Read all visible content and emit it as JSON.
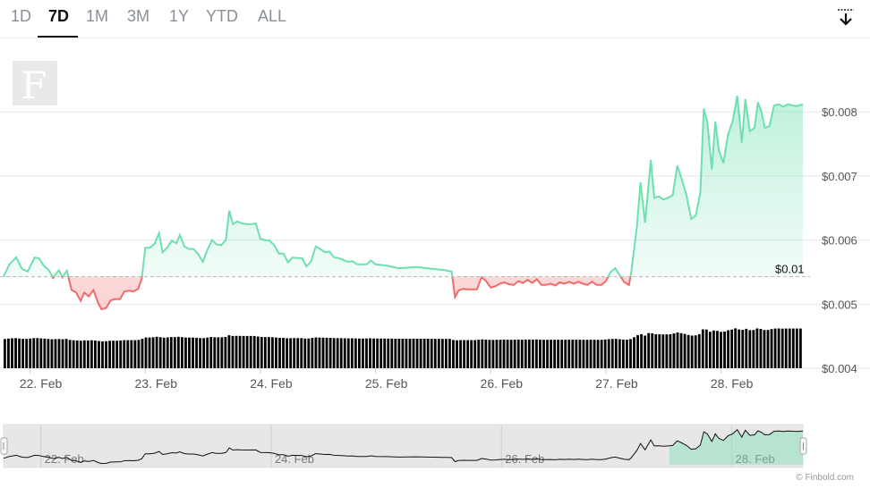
{
  "tabs": {
    "items": [
      "1D",
      "7D",
      "1M",
      "3M",
      "1Y",
      "YTD",
      "ALL"
    ],
    "active": "7D"
  },
  "download_icon": "download-arrow-icon",
  "logo_letter": "F",
  "credit": "© Finbold.com",
  "colors": {
    "up": "#6ee0b0",
    "down": "#ef6b6b",
    "up_fill": "#d4f6e6",
    "down_fill": "#fcdede",
    "volume": "#000000",
    "grid": "#e6e6e6",
    "tab_active": "#111111"
  },
  "chart_data": {
    "type": "line",
    "baseline_label": "$0.01",
    "baseline": 0.00543,
    "ylim": [
      0.004,
      0.0087
    ],
    "y_ticks": [
      {
        "value": 0.008,
        "label": "$0.008"
      },
      {
        "value": 0.007,
        "label": "$0.007"
      },
      {
        "value": 0.006,
        "label": "$0.006"
      },
      {
        "value": 0.005,
        "label": "$0.005"
      },
      {
        "value": 0.004,
        "label": "$0.004"
      }
    ],
    "x_range": [
      21.77,
      28.71
    ],
    "x_ticks": [
      {
        "value": 22,
        "label": "22. Feb"
      },
      {
        "value": 23,
        "label": "23. Feb"
      },
      {
        "value": 24,
        "label": "24. Feb"
      },
      {
        "value": 25,
        "label": "25. Feb"
      },
      {
        "value": 26,
        "label": "26. Feb"
      },
      {
        "value": 27,
        "label": "27. Feb"
      },
      {
        "value": 28,
        "label": "28. Feb"
      }
    ],
    "series": [
      {
        "points": [
          [
            21.77,
            0.00543
          ],
          [
            21.82,
            0.00562
          ],
          [
            21.88,
            0.00573
          ],
          [
            21.93,
            0.00555
          ],
          [
            21.98,
            0.00551
          ],
          [
            22.04,
            0.00573
          ],
          [
            22.08,
            0.00571
          ],
          [
            22.12,
            0.0056
          ],
          [
            22.16,
            0.00554
          ],
          [
            22.2,
            0.00541
          ],
          [
            22.25,
            0.00553
          ],
          [
            22.28,
            0.00542
          ],
          [
            22.32,
            0.00552
          ],
          [
            22.36,
            0.00522
          ],
          [
            22.4,
            0.00518
          ],
          [
            22.44,
            0.00505
          ],
          [
            22.47,
            0.00518
          ],
          [
            22.51,
            0.00512
          ],
          [
            22.55,
            0.00522
          ],
          [
            22.59,
            0.00502
          ],
          [
            22.62,
            0.00492
          ],
          [
            22.66,
            0.00494
          ],
          [
            22.7,
            0.00506
          ],
          [
            22.74,
            0.00508
          ],
          [
            22.78,
            0.00508
          ],
          [
            22.82,
            0.0052
          ],
          [
            22.86,
            0.00521
          ],
          [
            22.9,
            0.0052
          ],
          [
            22.94,
            0.00524
          ],
          [
            22.97,
            0.0054
          ],
          [
            23.0,
            0.00588
          ],
          [
            23.04,
            0.00588
          ],
          [
            23.08,
            0.00594
          ],
          [
            23.12,
            0.00611
          ],
          [
            23.15,
            0.00581
          ],
          [
            23.19,
            0.00588
          ],
          [
            23.23,
            0.00599
          ],
          [
            23.27,
            0.00595
          ],
          [
            23.3,
            0.00608
          ],
          [
            23.34,
            0.0059
          ],
          [
            23.38,
            0.00586
          ],
          [
            23.42,
            0.00586
          ],
          [
            23.46,
            0.00578
          ],
          [
            23.5,
            0.00566
          ],
          [
            23.54,
            0.00585
          ],
          [
            23.58,
            0.006
          ],
          [
            23.62,
            0.00593
          ],
          [
            23.66,
            0.00592
          ],
          [
            23.7,
            0.006
          ],
          [
            23.73,
            0.00646
          ],
          [
            23.76,
            0.00625
          ],
          [
            23.8,
            0.00629
          ],
          [
            23.84,
            0.00626
          ],
          [
            23.88,
            0.00625
          ],
          [
            23.92,
            0.00625
          ],
          [
            23.96,
            0.00626
          ],
          [
            24.0,
            0.00602
          ],
          [
            24.04,
            0.006
          ],
          [
            24.08,
            0.00599
          ],
          [
            24.12,
            0.00592
          ],
          [
            24.16,
            0.00579
          ],
          [
            24.2,
            0.00579
          ],
          [
            24.24,
            0.00565
          ],
          [
            24.28,
            0.00573
          ],
          [
            24.32,
            0.00572
          ],
          [
            24.36,
            0.00572
          ],
          [
            24.4,
            0.00559
          ],
          [
            24.44,
            0.00567
          ],
          [
            24.48,
            0.0059
          ],
          [
            24.52,
            0.00586
          ],
          [
            24.56,
            0.00581
          ],
          [
            24.6,
            0.00582
          ],
          [
            24.64,
            0.00573
          ],
          [
            24.68,
            0.00572
          ],
          [
            24.72,
            0.00569
          ],
          [
            24.76,
            0.00566
          ],
          [
            24.8,
            0.00567
          ],
          [
            24.84,
            0.00562
          ],
          [
            24.88,
            0.00562
          ],
          [
            24.92,
            0.00562
          ],
          [
            24.96,
            0.00568
          ],
          [
            25.0,
            0.00562
          ],
          [
            25.1,
            0.0056
          ],
          [
            25.2,
            0.00556
          ],
          [
            25.35,
            0.00558
          ],
          [
            25.5,
            0.00555
          ],
          [
            25.6,
            0.00553
          ],
          [
            25.66,
            0.00551
          ],
          [
            25.69,
            0.00511
          ],
          [
            25.72,
            0.00521
          ],
          [
            25.76,
            0.00524
          ],
          [
            25.8,
            0.00523
          ],
          [
            25.84,
            0.00523
          ],
          [
            25.88,
            0.00523
          ],
          [
            25.92,
            0.00542
          ],
          [
            25.96,
            0.00536
          ],
          [
            26.0,
            0.00526
          ],
          [
            26.04,
            0.00528
          ],
          [
            26.08,
            0.00532
          ],
          [
            26.12,
            0.00534
          ],
          [
            26.16,
            0.00531
          ],
          [
            26.2,
            0.0053
          ],
          [
            26.24,
            0.00536
          ],
          [
            26.28,
            0.00533
          ],
          [
            26.32,
            0.00538
          ],
          [
            26.36,
            0.00533
          ],
          [
            26.4,
            0.00539
          ],
          [
            26.44,
            0.0053
          ],
          [
            26.48,
            0.0053
          ],
          [
            26.52,
            0.00532
          ],
          [
            26.56,
            0.00529
          ],
          [
            26.6,
            0.00534
          ],
          [
            26.64,
            0.00532
          ],
          [
            26.68,
            0.00535
          ],
          [
            26.72,
            0.00532
          ],
          [
            26.76,
            0.00535
          ],
          [
            26.8,
            0.00532
          ],
          [
            26.84,
            0.0053
          ],
          [
            26.88,
            0.00535
          ],
          [
            26.92,
            0.0053
          ],
          [
            26.96,
            0.0053
          ],
          [
            27.0,
            0.00536
          ],
          [
            27.04,
            0.0055
          ],
          [
            27.08,
            0.00556
          ],
          [
            27.12,
            0.00545
          ],
          [
            27.16,
            0.00534
          ],
          [
            27.2,
            0.0053
          ],
          [
            27.22,
            0.0055
          ],
          [
            27.27,
            0.00623
          ],
          [
            27.3,
            0.0069
          ],
          [
            27.34,
            0.00627
          ],
          [
            27.39,
            0.00725
          ],
          [
            27.42,
            0.00666
          ],
          [
            27.46,
            0.00668
          ],
          [
            27.5,
            0.00663
          ],
          [
            27.55,
            0.00667
          ],
          [
            27.58,
            0.0067
          ],
          [
            27.62,
            0.00716
          ],
          [
            27.65,
            0.007
          ],
          [
            27.7,
            0.0067
          ],
          [
            27.74,
            0.00633
          ],
          [
            27.78,
            0.00638
          ],
          [
            27.82,
            0.00675
          ],
          [
            27.85,
            0.00805
          ],
          [
            27.88,
            0.00785
          ],
          [
            27.92,
            0.0071
          ],
          [
            27.95,
            0.00785
          ],
          [
            27.98,
            0.0074
          ],
          [
            28.02,
            0.0072
          ],
          [
            28.06,
            0.00765
          ],
          [
            28.1,
            0.00785
          ],
          [
            28.14,
            0.00825
          ],
          [
            28.18,
            0.00752
          ],
          [
            28.21,
            0.0082
          ],
          [
            28.25,
            0.0077
          ],
          [
            28.29,
            0.00775
          ],
          [
            28.32,
            0.00815
          ],
          [
            28.35,
            0.008
          ],
          [
            28.38,
            0.00775
          ],
          [
            28.42,
            0.00778
          ],
          [
            28.46,
            0.0081
          ],
          [
            28.5,
            0.00812
          ],
          [
            28.54,
            0.00808
          ],
          [
            28.58,
            0.00812
          ],
          [
            28.62,
            0.0081
          ],
          [
            28.66,
            0.00809
          ],
          [
            28.71,
            0.00812
          ]
        ]
      }
    ],
    "volume": [
      3,
      3,
      3,
      3,
      3,
      3,
      3,
      3,
      3,
      3,
      3,
      3,
      3,
      3,
      3,
      3,
      3,
      3,
      3,
      3,
      3,
      3,
      3,
      3,
      3,
      3,
      3,
      3,
      3,
      3,
      3,
      3,
      3,
      3,
      3,
      3,
      3,
      3,
      3,
      3,
      3,
      3,
      3,
      3,
      3,
      3,
      3,
      3,
      3,
      3,
      3,
      3,
      3,
      3,
      3,
      3,
      3,
      3,
      3,
      3,
      3,
      3,
      3,
      3,
      3,
      3,
      3,
      3,
      3,
      3,
      3,
      3,
      3,
      3,
      3,
      3,
      3,
      3,
      3,
      3,
      3,
      3,
      3,
      3,
      3,
      3,
      3,
      3,
      3,
      3,
      3,
      3,
      3,
      3,
      3,
      3,
      3,
      3,
      3,
      3,
      3,
      3,
      3,
      3,
      3,
      3,
      3,
      3,
      3,
      3,
      3,
      3,
      3,
      3,
      3,
      3,
      3,
      3,
      3,
      3,
      3,
      3,
      3,
      3,
      3,
      3,
      3,
      3,
      3,
      3,
      3,
      3,
      3,
      3,
      3,
      3,
      3,
      3,
      3,
      3,
      3,
      3,
      3,
      3,
      3,
      3,
      3,
      3,
      3,
      3,
      3,
      3,
      3,
      3,
      3,
      3,
      3,
      3,
      3,
      3,
      3,
      3,
      3,
      3,
      3,
      3,
      3,
      3,
      3,
      3,
      3,
      3,
      3,
      3,
      3,
      3,
      3,
      3,
      3,
      3,
      3,
      3,
      3,
      3,
      3,
      3,
      3,
      3,
      3,
      3,
      3,
      3,
      3,
      3,
      3,
      3,
      3,
      3,
      3,
      3,
      3,
      3,
      3,
      3,
      3,
      3,
      3,
      3,
      3,
      3,
      3,
      3,
      3,
      3,
      3,
      3,
      3,
      3,
      3,
      3,
      3,
      3,
      3,
      3,
      3,
      3,
      3,
      3,
      3,
      3,
      3,
      3,
      3,
      3,
      3,
      3,
      3,
      3,
      3,
      3,
      3,
      3,
      3,
      3,
      3,
      3,
      3,
      3,
      3,
      3,
      3,
      3
    ],
    "navigator_labels": [
      "22. Feb",
      "24. Feb",
      "26. Feb",
      "28. Feb"
    ]
  }
}
